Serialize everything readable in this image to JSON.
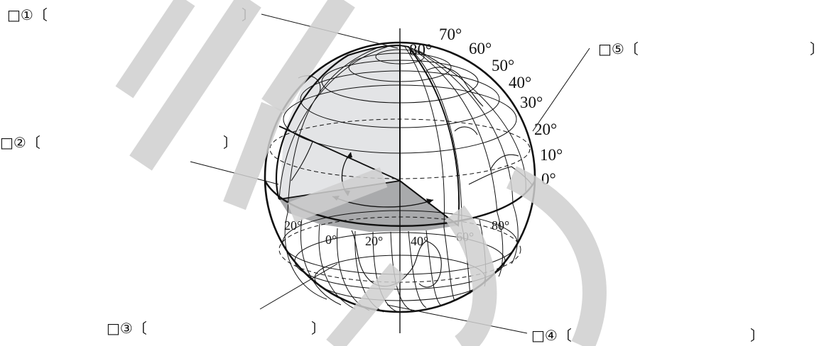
{
  "blanks": [
    {
      "label": "□①〔",
      "close": "〕"
    },
    {
      "label": "□②〔",
      "close": "〕"
    },
    {
      "label": "□③〔",
      "close": "〕"
    },
    {
      "label": "□④〔",
      "close": "〕"
    },
    {
      "label": "□⑤〔",
      "close": "〕"
    }
  ],
  "latitude_labels": [
    "80°",
    "70°",
    "60°",
    "50°",
    "40°",
    "30°",
    "20°",
    "10°",
    "0°"
  ],
  "longitude_labels": [
    "20°",
    "0°",
    "20°",
    "40°",
    "60°",
    "80°"
  ],
  "colors": {
    "watermark": "#cfcfcf",
    "sector_light": "#e3e4e6",
    "sector_dark": "#a9aaac",
    "line": "#111111"
  }
}
